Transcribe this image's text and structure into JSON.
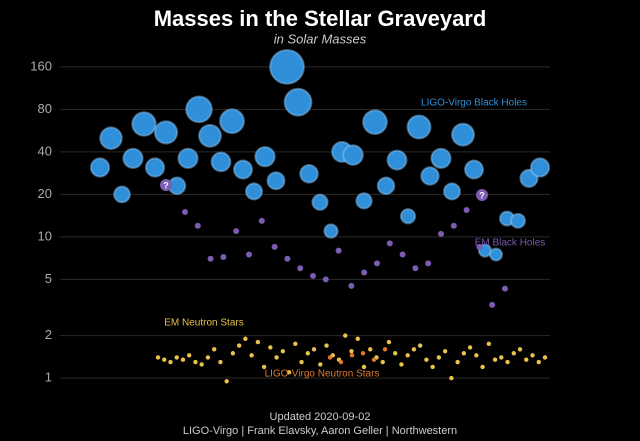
{
  "chart_data": {
    "type": "scatter",
    "title": "Masses in the Stellar Graveyard",
    "subtitle": "in Solar Masses",
    "log_y": true,
    "grid": true,
    "ylim": [
      0.7,
      250
    ],
    "yticks": [
      1,
      2,
      5,
      10,
      20,
      40,
      80,
      160
    ],
    "series": [
      {
        "name": "LIGO-Virgo Black Holes",
        "color": "#2f8fd8",
        "values": [
          31,
          50,
          20,
          36,
          63,
          31,
          55,
          23,
          36,
          80,
          52,
          34,
          66,
          30,
          21,
          37,
          25,
          160,
          90,
          28,
          17.6,
          11,
          40,
          38,
          18,
          65,
          23,
          35,
          14,
          60,
          27,
          36,
          21,
          53,
          30,
          8,
          7.5,
          13.5,
          13,
          26,
          31
        ]
      },
      {
        "name": "EM Black Holes",
        "color": "#7a5cb0",
        "values": [
          15,
          12,
          7,
          7.2,
          11,
          7.5,
          13,
          8.5,
          7,
          6,
          5.3,
          5,
          8,
          4.5,
          5.6,
          6.5,
          9,
          7.5,
          6,
          6.5,
          10.5,
          12,
          15.5,
          8.5,
          3.3,
          4.3
        ]
      },
      {
        "name": "EM Neutron Stars",
        "color": "#e8c24a",
        "values": [
          1.4,
          1.35,
          1.3,
          1.4,
          1.35,
          1.45,
          1.3,
          1.25,
          1.4,
          1.6,
          1.3,
          0.95,
          1.5,
          1.7,
          1.9,
          1.45,
          1.8,
          1.2,
          1.65,
          1.4,
          1.55,
          1.1,
          1.75,
          1.3,
          1.5,
          1.6,
          1.25,
          1.7,
          1.45,
          1.35,
          2.0,
          1.55,
          1.9,
          1.2,
          1.6,
          1.4,
          1.3,
          1.8,
          1.5,
          1.25,
          1.45,
          1.6,
          1.7,
          1.35,
          1.2,
          1.4,
          1.55,
          1.0,
          1.3,
          1.5,
          1.65,
          1.45,
          1.2,
          1.75,
          1.35,
          1.4,
          1.3,
          1.5,
          1.6,
          1.35,
          1.45,
          1.3,
          1.4
        ]
      },
      {
        "name": "LIGO-Virgo Neutron Stars",
        "color": "#e0792e",
        "values": [
          1.4,
          1.3,
          1.45,
          1.5,
          1.35,
          1.6
        ]
      }
    ],
    "annotations": [
      "?",
      "?"
    ],
    "footer": [
      "Updated 2020-09-02",
      "LIGO-Virgo | Frank Elavsky, Aaron Geller | Northwestern"
    ]
  }
}
